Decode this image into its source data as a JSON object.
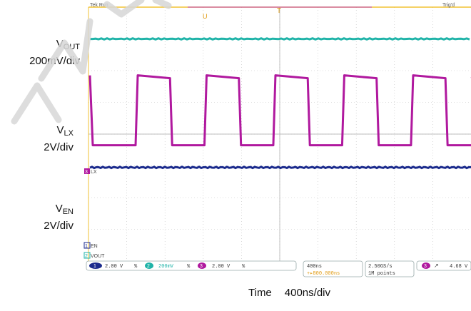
{
  "scope": {
    "status": "Tek Run",
    "trigger_state": "Trig'd",
    "trigger_marker": "T",
    "marker_u": "U",
    "channel_markers": [
      "3",
      "LX",
      "1",
      "EN",
      "2",
      "VOUT"
    ],
    "readouts": {
      "ch1": {
        "num": "1",
        "scale": "2.00 V"
      },
      "ch2": {
        "num": "2",
        "scale": "200mV"
      },
      "ch3": {
        "num": "3",
        "scale": "2.00 V"
      },
      "timebase": "400ns",
      "position": "+▸800.000ns",
      "sample_rate": "2.50GS/s",
      "record": "1M points",
      "trigger_level": "4.68 V",
      "trigger_ch": "3"
    },
    "bw_symbol": "%"
  },
  "labels": {
    "vout_v": "V",
    "vout_sub": "OUT",
    "vout_div": "200mV/div",
    "vlx_v": "V",
    "vlx_sub": "LX",
    "vlx_div": "2V/div",
    "ven_v": "V",
    "ven_sub": "EN",
    "ven_div": "2V/div"
  },
  "chart_data": {
    "type": "line",
    "xlabel": "Time",
    "x_scale": "400ns/div",
    "x_divisions": 10,
    "y_divisions": 8,
    "colors": {
      "vout": "#1fb3a8",
      "vlx": "#b0189e",
      "ven": "#1a2a8c",
      "grid": "#bfbfbf",
      "frame": "#f2c233"
    },
    "series": [
      {
        "name": "VOUT",
        "scale": "200mV/div",
        "values_div": [
          3.0
        ]
      },
      {
        "name": "VLX",
        "scale": "2V/div",
        "period_ns": 720,
        "duty": 0.5,
        "high_div": 1.85,
        "low_div": -0.35
      },
      {
        "name": "VEN",
        "scale": "2V/div",
        "values_div": [
          -1.05
        ]
      }
    ]
  }
}
